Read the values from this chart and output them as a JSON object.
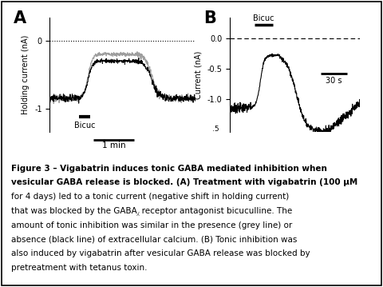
{
  "fig_width": 4.8,
  "fig_height": 3.59,
  "dpi": 100,
  "background": "#ffffff",
  "panel_A": {
    "label": "A",
    "ylabel": "Holding current (nA)",
    "yticks": [
      0,
      -1
    ],
    "ylim": [
      -1.35,
      0.35
    ],
    "bicuc_label": "Bicuc",
    "scale_label": "1 min",
    "trace_black_color": "#000000",
    "trace_gray_color": "#999999"
  },
  "panel_B": {
    "label": "B",
    "ylabel": "Current (nA)",
    "yticks": [
      0.0,
      -0.5,
      -1.0
    ],
    "ytick_labels": [
      "0.0",
      "-0.5",
      "-1.0"
    ],
    "ylim": [
      -1.55,
      0.35
    ],
    "bicuc_label": "Bicuc",
    "scale_label": "30 s",
    "trace_color": "#000000",
    "bottom_label": ".5"
  },
  "caption_bold": "Figure 3 – Vigabatrin induces tonic GABA mediated inhibition when vesicular GABA release is blocked.",
  "caption_normal": " (A) Treatment with vigabatrin (100 μM for 4 days) led to a tonic current (negative shift in holding current) that was blocked by the GABA⁁ receptor antagonist bicuculline. The amount of tonic inhibition was similar in the presence (grey line) or absence (black line) of extracellular calcium. (B) Tonic inhibition was also induced by vigabatrin after vesicular GABA release was blocked by pretreatment with tetanus toxin.",
  "caption_fontsize": 7.5
}
